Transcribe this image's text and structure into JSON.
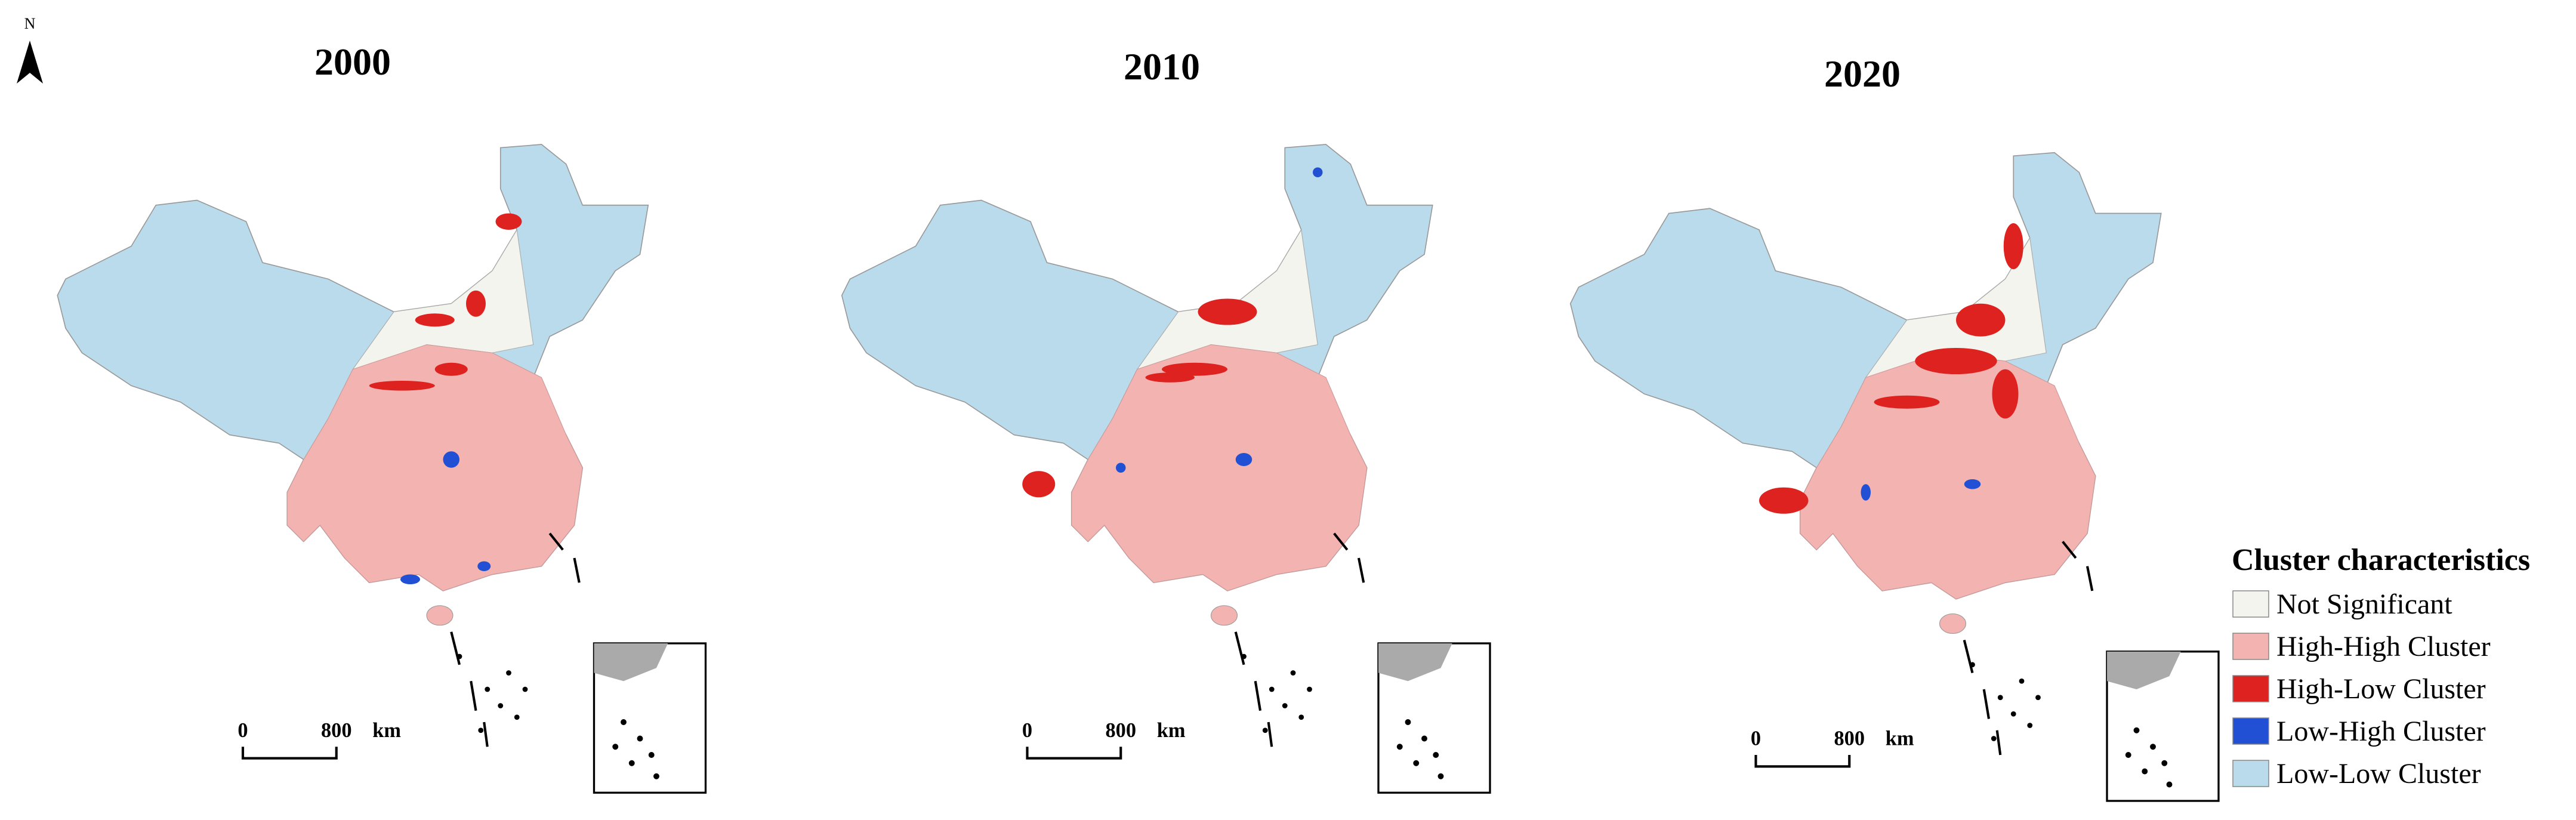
{
  "north_label": "N",
  "maps": [
    {
      "title": "2000",
      "scale_bar": {
        "start": "0",
        "end": "800",
        "unit": "km"
      }
    },
    {
      "title": "2010",
      "scale_bar": {
        "start": "0",
        "end": "800",
        "unit": "km"
      }
    },
    {
      "title": "2020",
      "scale_bar": {
        "start": "0",
        "end": "800",
        "unit": "km"
      }
    }
  ],
  "legend": {
    "title": "Cluster characteristics",
    "items": [
      {
        "label": "Not Significant",
        "color": "#f4f4ee"
      },
      {
        "label": "High-High Cluster",
        "color": "#f3b3b1"
      },
      {
        "label": "High-Low Cluster",
        "color": "#dd2220"
      },
      {
        "label": "Low-High Cluster",
        "color": "#2150d4"
      },
      {
        "label": "Low-Low  Cluster",
        "color": "#b9dbec"
      }
    ]
  }
}
